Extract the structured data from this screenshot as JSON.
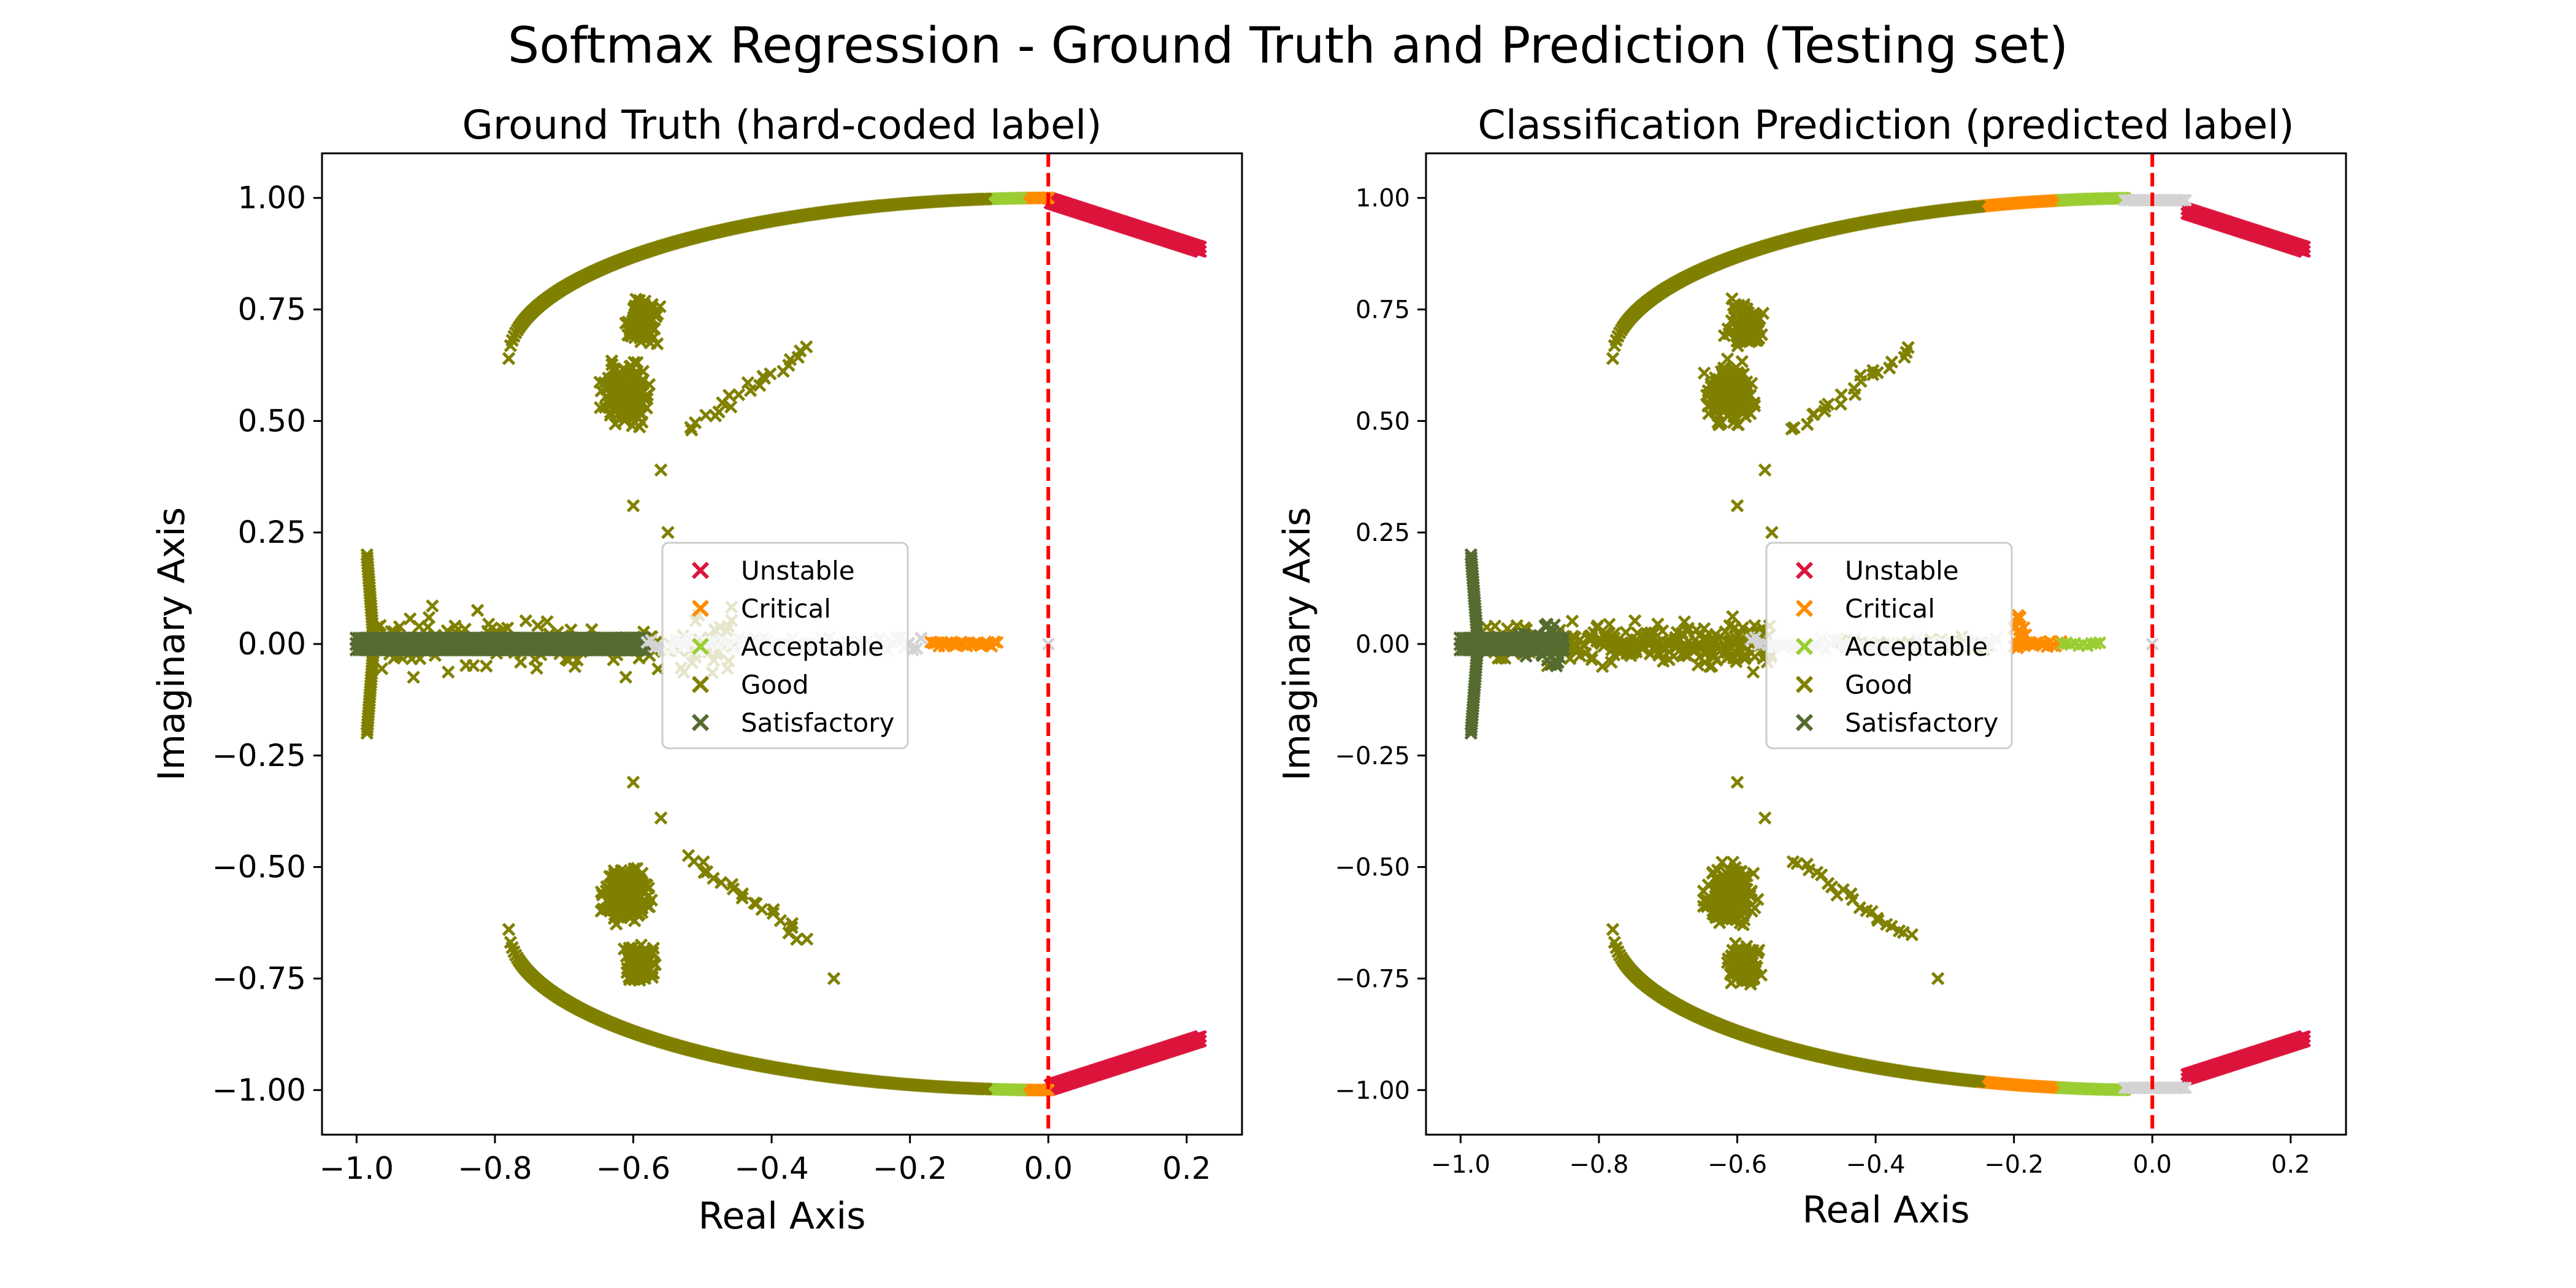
{
  "figure": {
    "title": "Softmax Regression - Ground Truth and Prediction (Testing set)"
  },
  "colors": {
    "Unstable": "#dc143c",
    "Critical": "#ff8c00",
    "Acceptable": "#9acd32",
    "Good": "#808000",
    "Satisfactory": "#556b2f",
    "boundary": "#ff0000",
    "faint": "#d3d3d3"
  },
  "chart_data": [
    {
      "type": "scatter",
      "title": "Ground Truth (hard-coded label)",
      "xlabel": "Real Axis",
      "ylabel": "Imaginary Axis",
      "xlim": [
        -1.05,
        0.28
      ],
      "ylim": [
        -1.1,
        1.1
      ],
      "xticks": [
        -1.0,
        -0.8,
        -0.6,
        -0.4,
        -0.2,
        0.0,
        0.2
      ],
      "xtick_labels": [
        "−1.0",
        "−0.8",
        "−0.6",
        "−0.4",
        "−0.2",
        "0.0",
        "0.2"
      ],
      "yticks": [
        -1.0,
        -0.75,
        -0.5,
        -0.25,
        0.0,
        0.25,
        0.5,
        0.75,
        1.0
      ],
      "ytick_labels": [
        "−1.00",
        "−0.75",
        "−0.50",
        "−0.25",
        "0.00",
        "0.25",
        "0.50",
        "0.75",
        "1.00"
      ],
      "marker": "x",
      "vline_x": 0.0,
      "legend": {
        "position": "center",
        "entries": [
          "Unstable",
          "Critical",
          "Acceptable",
          "Good",
          "Satisfactory"
        ]
      },
      "series": [
        {
          "name": "Unstable",
          "x_range": [
            0.0,
            0.22
          ],
          "on_arc": true
        },
        {
          "name": "Critical",
          "x_range": [
            -0.04,
            0.0
          ],
          "on_arc": true,
          "real_axis_x_range": [
            -0.17,
            -0.07
          ]
        },
        {
          "name": "Acceptable",
          "x_range": [
            -0.09,
            -0.04
          ],
          "on_arc": true
        },
        {
          "name": "Good",
          "x_range": [
            -0.78,
            -0.09
          ],
          "on_arc": true
        },
        {
          "name": "Satisfactory",
          "real_axis_x_range": [
            -1.0,
            -0.58
          ]
        }
      ]
    },
    {
      "type": "scatter",
      "title": "Classification Prediction (predicted label)",
      "xlabel": "Real Axis",
      "ylabel": "Imaginary Axis",
      "xlim": [
        -1.05,
        0.28
      ],
      "ylim": [
        -1.1,
        1.1
      ],
      "xticks": [
        -1.0,
        -0.8,
        -0.6,
        -0.4,
        -0.2,
        0.0,
        0.2
      ],
      "xtick_labels": [
        "−1.0",
        "−0.8",
        "−0.6",
        "−0.4",
        "−0.2",
        "0.0",
        "0.2"
      ],
      "yticks": [
        -1.0,
        -0.75,
        -0.5,
        -0.25,
        0.0,
        0.25,
        0.5,
        0.75,
        1.0
      ],
      "ytick_labels": [
        "−1.00",
        "−0.75",
        "−0.50",
        "−0.25",
        "0.00",
        "0.25",
        "0.50",
        "0.75",
        "1.00"
      ],
      "marker": "x",
      "vline_x": 0.0,
      "legend": {
        "position": "center",
        "entries": [
          "Unstable",
          "Critical",
          "Acceptable",
          "Good",
          "Satisfactory"
        ]
      },
      "series": [
        {
          "name": "Unstable",
          "x_range": [
            0.05,
            0.22
          ],
          "on_arc": true
        },
        {
          "name": "Critical",
          "x_range": [
            -0.25,
            -0.13
          ],
          "on_arc": true
        },
        {
          "name": "Acceptable",
          "x_range": [
            -0.13,
            -0.04
          ],
          "on_arc": true
        },
        {
          "name": "Good",
          "x_range": [
            -0.78,
            -0.25
          ],
          "on_arc": true
        },
        {
          "name": "Satisfactory",
          "real_axis_x_range": [
            -1.0,
            -0.85
          ]
        }
      ]
    }
  ]
}
